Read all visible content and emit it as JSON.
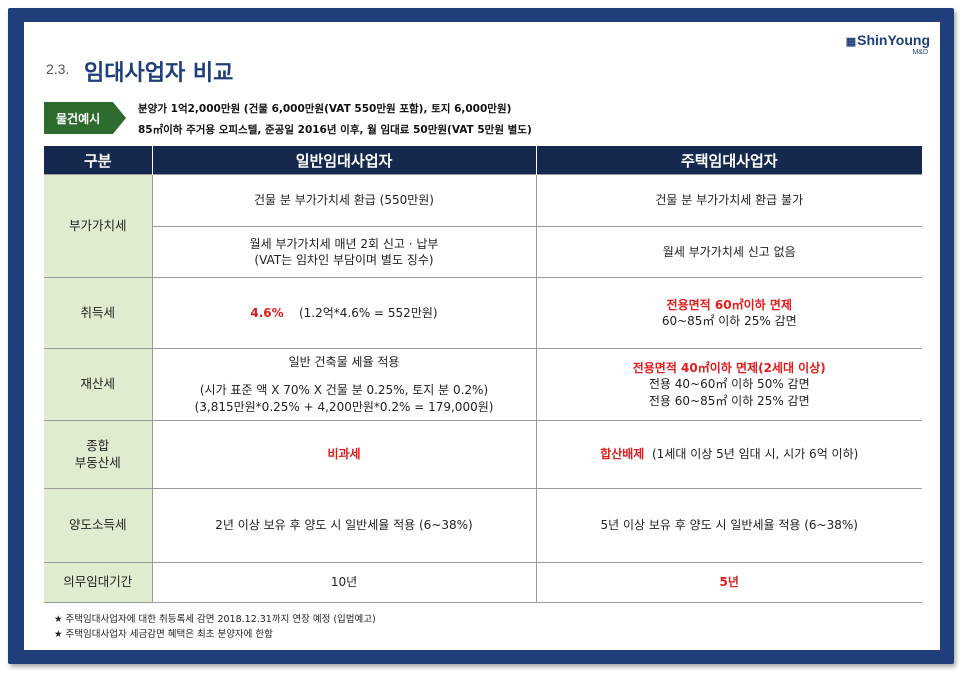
{
  "logo": {
    "brand": "ShinYoung",
    "sub": "M&D"
  },
  "header": {
    "section_number": "2.3.",
    "title": "임대사업자 비교"
  },
  "property": {
    "tag": "물건예시",
    "line1": "분양가 1억2,000만원 (건물 6,000만원(VAT 550만원 포함), 토지 6,000만원)",
    "line2": "85㎡이하 주거용 오피스텔, 준공일 2016년 이후, 월 임대료 50만원(VAT 5만원 별도)"
  },
  "table": {
    "headers": [
      "구분",
      "일반임대사업자",
      "주택임대사업자"
    ],
    "rows": {
      "vat": {
        "label": "부가가치세",
        "general_1": "건물 분 부가가치세 환급 (550만원)",
        "housing_1": "건물 분 부가가치세 환급 불가",
        "general_2a": "월세 부가가치세  매년 2회 신고 · 납부",
        "general_2b": "(VAT는 임차인 부담이며 별도 징수)",
        "housing_2": "월세 부가가치세 신고 없음"
      },
      "acq": {
        "label": "취득세",
        "general_rate": "4.6%",
        "general_calc": "(1.2억*4.6% = 552만원)",
        "housing_red": "전용면적 60㎡이하 면제",
        "housing_2": "60~85㎡ 이하 25% 감면"
      },
      "property_tax": {
        "label": "재산세",
        "general_1": "일반 건축물 세율 적용",
        "general_2": "(시가 표준 액 X 70% X 건물 분 0.25%, 토지 분 0.2%)",
        "general_3": "(3,815만원*0.25% + 4,200만원*0.2% = 179,000원)",
        "housing_red": "전용면적 40㎡이하 면제(2세대 이상)",
        "housing_2": "전용 40~60㎡ 이하 50% 감면",
        "housing_3": "전용 60~85㎡ 이하 25% 감면"
      },
      "comprehensive": {
        "label_1": "종합",
        "label_2": "부동산세",
        "general_red": "비과세",
        "housing_red": "합산배제",
        "housing_rest": "(1세대 이상 5년 임대 시, 시가 6억 이하)"
      },
      "transfer": {
        "label": "양도소득세",
        "general": "2년 이상 보유 후 양도 시 일반세율 적용 (6~38%)",
        "housing": "5년 이상 보유 후 양도 시 일반세율 적용 (6~38%)"
      },
      "duty": {
        "label": "의무임대기간",
        "general": "10년",
        "housing_red": "5년"
      }
    }
  },
  "footnotes": [
    "★ 주택임대사업자에 대한 취등록세 감면 2018.12.31까지 연장 예정 (입법예고)",
    "★ 주택임대사업자 세금감면 혜택은 최초 분양자에 한함"
  ]
}
